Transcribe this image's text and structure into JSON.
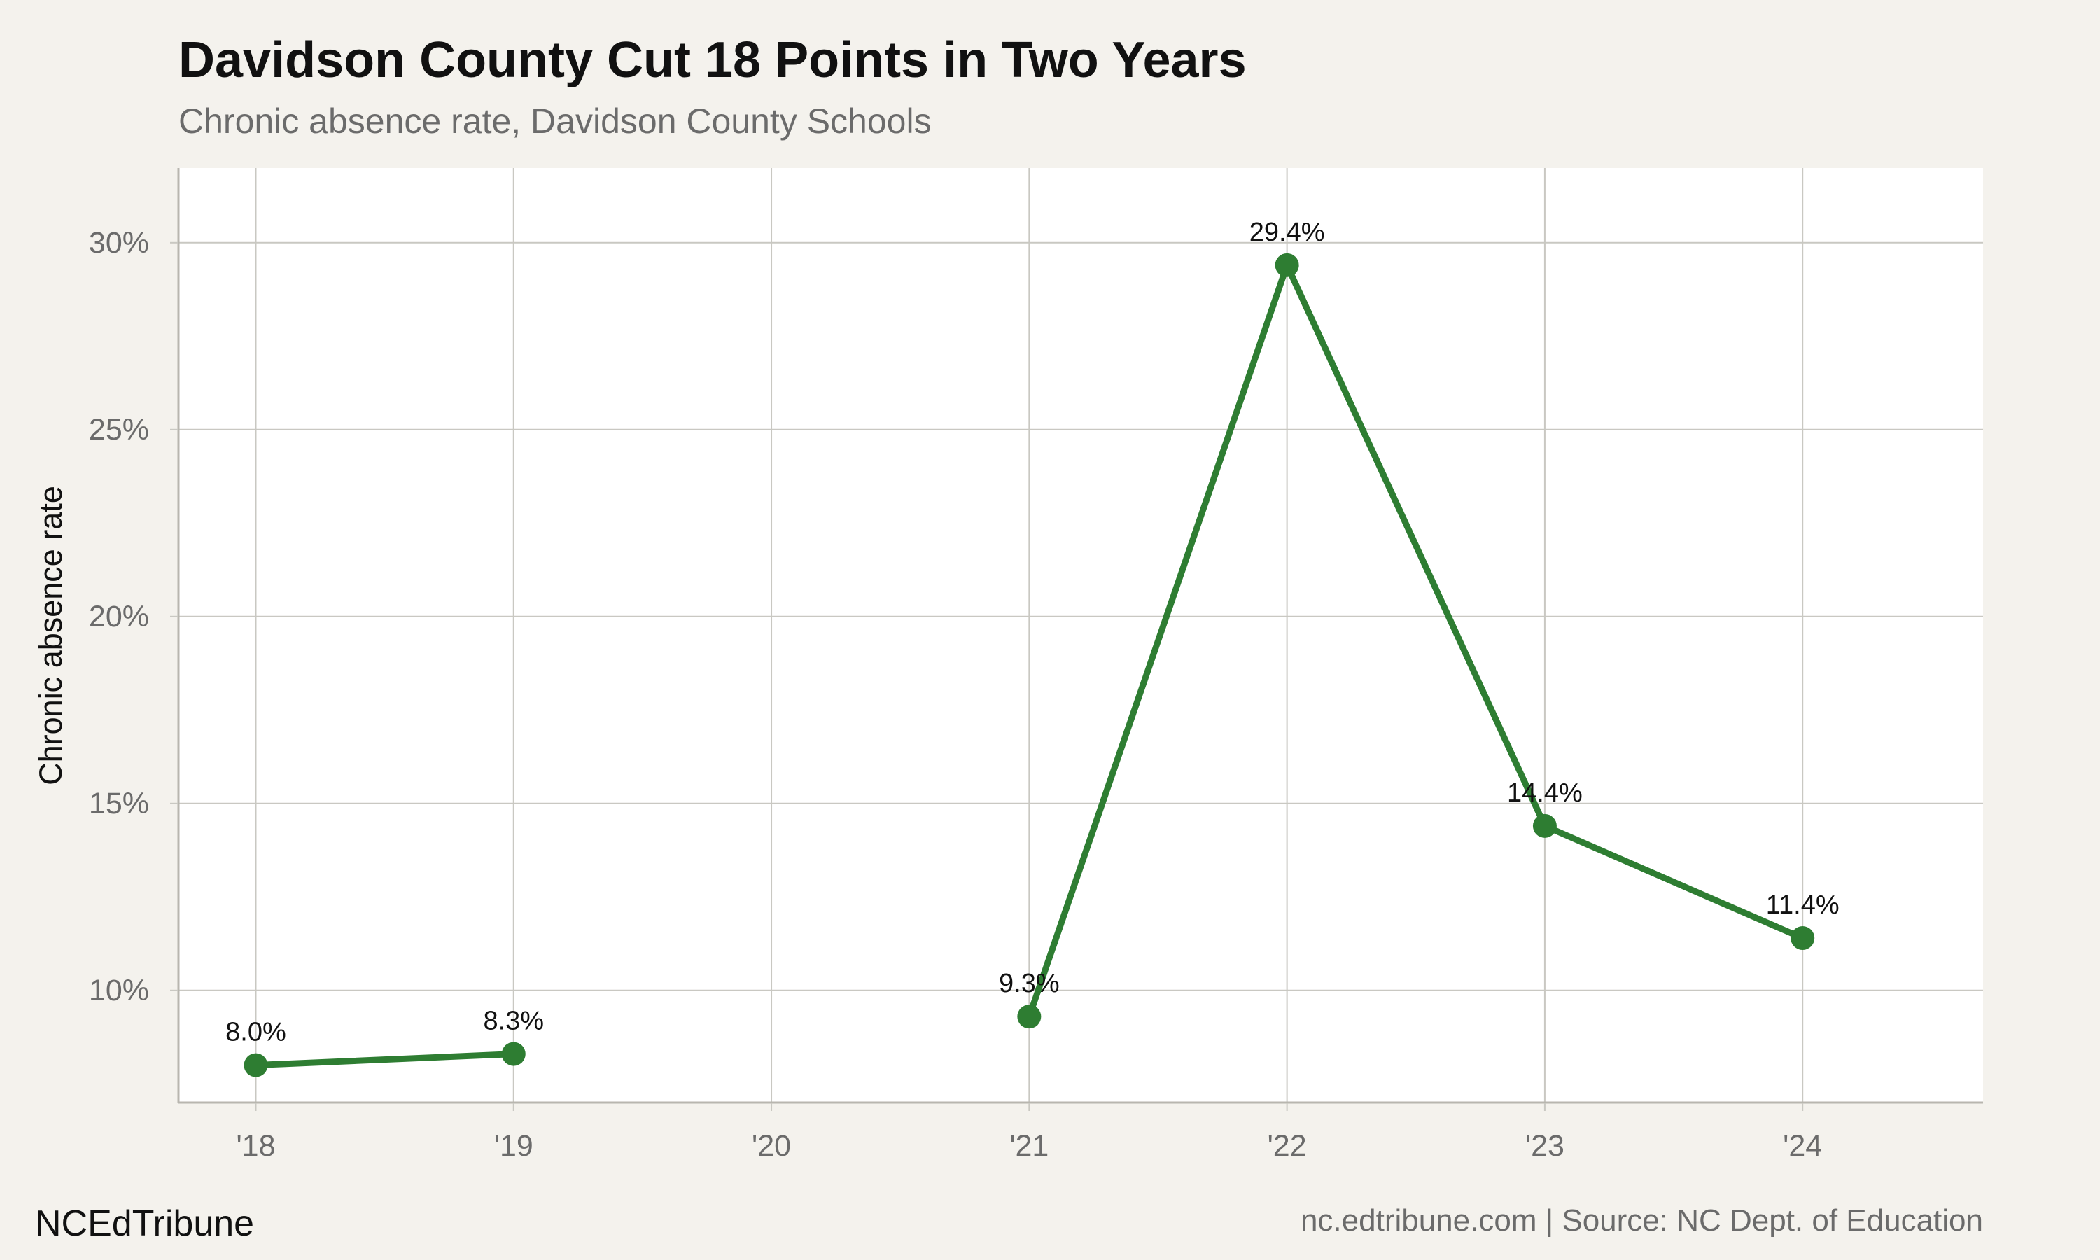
{
  "chart_data": {
    "type": "line",
    "title": "Davidson County Cut 18 Points in Two Years",
    "subtitle": "Chronic absence rate, Davidson County Schools",
    "ylabel": "Chronic absence rate",
    "xlabel": "",
    "categories": [
      "'18",
      "'19",
      "'20",
      "'21",
      "'22",
      "'23",
      "'24"
    ],
    "x_range": [
      2017.7,
      2024.7
    ],
    "ylim": [
      7,
      32
    ],
    "y_ticks": [
      10,
      15,
      20,
      25,
      30
    ],
    "y_tick_labels": [
      "10%",
      "15%",
      "20%",
      "25%",
      "30%"
    ],
    "grid": true,
    "legend": "none",
    "series": [
      {
        "segments": [
          {
            "x": [
              2018,
              2019
            ],
            "values": [
              8.0,
              8.3
            ],
            "labels": [
              "8.0%",
              "8.3%"
            ]
          },
          {
            "x": [
              2021,
              2022,
              2023,
              2024
            ],
            "values": [
              9.3,
              29.4,
              14.4,
              11.4
            ],
            "labels": [
              "9.3%",
              "29.4%",
              "14.4%",
              "11.4%"
            ]
          }
        ],
        "color": "#2e7d32"
      }
    ]
  },
  "footer": {
    "brand": "NCEdTribune",
    "source": "nc.edtribune.com | Source: NC Dept. of Education"
  },
  "colors": {
    "background": "#f4f2ed",
    "plot_background": "#ffffff",
    "grid": "#c9c8c2",
    "line": "#2e7d32"
  }
}
